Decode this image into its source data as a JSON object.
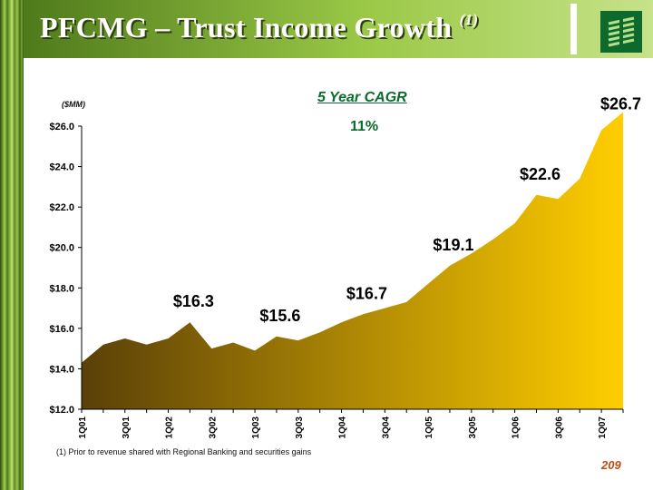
{
  "slide": {
    "title": "PFCMG – Trust Income Growth",
    "title_note": "(1)",
    "footnote": "(1)  Prior to revenue shared with Regional Banking and securities gains",
    "page_number": "209"
  },
  "cagr": {
    "label": "5 Year CAGR",
    "value": "11%"
  },
  "colors": {
    "title_green": "#0a6b2b",
    "area_dark": "#5a4008",
    "area_light": "#ffce00",
    "page_number": "#c24a12"
  },
  "chart_data": {
    "type": "area",
    "ylabel": "($MM)",
    "ylim": [
      12.0,
      26.0
    ],
    "y_ticks": [
      "$12.0",
      "$14.0",
      "$16.0",
      "$18.0",
      "$20.0",
      "$22.0",
      "$24.0",
      "$26.0"
    ],
    "y_tick_values": [
      12,
      14,
      16,
      18,
      20,
      22,
      24,
      26
    ],
    "x": [
      "1Q01",
      "2Q01",
      "3Q01",
      "4Q01",
      "1Q02",
      "2Q02",
      "3Q02",
      "4Q02",
      "1Q03",
      "2Q03",
      "3Q03",
      "4Q03",
      "1Q04",
      "2Q04",
      "3Q04",
      "4Q04",
      "1Q05",
      "2Q05",
      "3Q05",
      "4Q05",
      "1Q06",
      "2Q06",
      "3Q06",
      "4Q06",
      "1Q07",
      "2Q07"
    ],
    "x_tick_labels": [
      "1Q01",
      "3Q01",
      "1Q02",
      "3Q02",
      "1Q03",
      "3Q03",
      "1Q04",
      "3Q04",
      "1Q05",
      "3Q05",
      "1Q06",
      "3Q06",
      "1Q07"
    ],
    "x_tick_indices": [
      0,
      2,
      4,
      6,
      8,
      10,
      12,
      14,
      16,
      18,
      20,
      22,
      24
    ],
    "values": [
      14.3,
      15.2,
      15.5,
      15.2,
      15.5,
      16.3,
      15.0,
      15.3,
      14.9,
      15.6,
      15.4,
      15.8,
      16.3,
      16.7,
      17.0,
      17.3,
      18.2,
      19.1,
      19.7,
      20.4,
      21.2,
      22.6,
      22.4,
      23.4,
      25.8,
      26.7
    ],
    "annotations": [
      {
        "index": 5,
        "label": "$16.3"
      },
      {
        "index": 9,
        "label": "$15.6"
      },
      {
        "index": 13,
        "label": "$16.7"
      },
      {
        "index": 17,
        "label": "$19.1"
      },
      {
        "index": 21,
        "label": "$22.6"
      },
      {
        "index": 25,
        "label": "$26.7"
      }
    ]
  }
}
